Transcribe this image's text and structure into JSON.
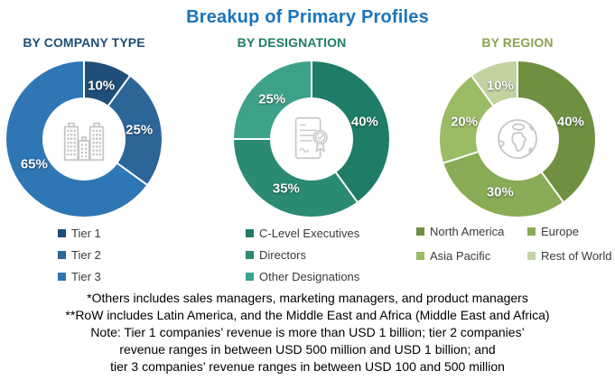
{
  "title": {
    "text": "Breakup of Primary Profiles",
    "color": "#1B75BB"
  },
  "chart_data": [
    {
      "type": "pie",
      "subtype": "donut",
      "section_title": "BY COMPANY TYPE",
      "section_color": "#1F4E79",
      "center_icon": "buildings-icon",
      "labels": [
        "Tier 1",
        "Tier 2",
        "Tier 3"
      ],
      "values": [
        10,
        25,
        65
      ],
      "value_labels": [
        "10%",
        "25%",
        "65%"
      ],
      "colors": [
        "#1F4E79",
        "#2C6598",
        "#2F76B5"
      ],
      "start_angle_deg": 0,
      "direction": "clockwise",
      "legend_position": "bottom",
      "legend_columns": 1
    },
    {
      "type": "pie",
      "subtype": "donut",
      "section_title": "BY DESIGNATION",
      "section_color": "#1E7C68",
      "center_icon": "certificate-icon",
      "labels": [
        "C-Level Executives",
        "Directors",
        "Other Designations"
      ],
      "values": [
        40,
        35,
        25
      ],
      "value_labels": [
        "40%",
        "35%",
        "25%"
      ],
      "colors": [
        "#1E7C68",
        "#2B8A74",
        "#3EA28A"
      ],
      "start_angle_deg": 0,
      "direction": "clockwise",
      "legend_position": "bottom",
      "legend_columns": 1
    },
    {
      "type": "pie",
      "subtype": "donut",
      "section_title": "BY REGION",
      "section_color": "#8CA24D",
      "center_icon": "globe-icon",
      "labels": [
        "North America",
        "Europe",
        "Asia Pacific",
        "Rest of World"
      ],
      "values": [
        40,
        30,
        20,
        10
      ],
      "value_labels": [
        "40%",
        "30%",
        "20%",
        "10%"
      ],
      "colors": [
        "#6F8F41",
        "#8AAB55",
        "#9CBB65",
        "#C2D3A0"
      ],
      "start_angle_deg": 0,
      "direction": "clockwise",
      "legend_position": "bottom",
      "legend_columns": 2
    }
  ],
  "footnotes": [
    "*Others includes sales managers, marketing managers, and product managers",
    "**RoW includes Latin America, and the Middle East and Africa (Middle East and Africa)",
    "Note: Tier 1 companies’ revenue is more than USD 1 billion; tier 2 companies’",
    "revenue ranges in between USD 500 million and USD 1 billion; and",
    "tier 3 companies’ revenue ranges in between USD 100 and 500 million"
  ]
}
